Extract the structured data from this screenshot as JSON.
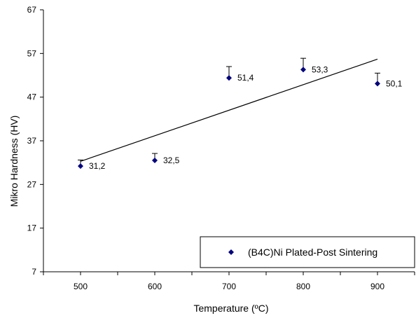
{
  "chart_data": {
    "type": "scatter",
    "xlabel": "Temperature  (ºC)",
    "ylabel": "Mikro Hardness (HV)",
    "xlim": [
      450,
      950
    ],
    "ylim": [
      7,
      67
    ],
    "x_ticks": [
      500,
      600,
      700,
      800,
      900
    ],
    "y_ticks": [
      7,
      17,
      27,
      37,
      47,
      57,
      67
    ],
    "x_tick_labels": [
      "500",
      "600",
      "700",
      "800",
      "900"
    ],
    "y_tick_labels": [
      "7",
      "17",
      "27",
      "37",
      "47",
      "57",
      "67"
    ],
    "series": [
      {
        "name": "(B4C)Ni Plated-Post Sintering",
        "marker": "diamond",
        "color": "#000080",
        "x": [
          500,
          600,
          700,
          800,
          900
        ],
        "y": [
          31.2,
          32.5,
          51.4,
          53.3,
          50.1
        ],
        "data_labels": [
          "31,2",
          "32,5",
          "51,4",
          "53,3",
          "50,1"
        ],
        "error_plus": [
          1.4,
          1.6,
          2.6,
          2.6,
          2.4
        ]
      }
    ],
    "trendline": {
      "type": "linear",
      "x": [
        500,
        900
      ],
      "y": [
        32.3,
        55.7
      ],
      "color": "#000000"
    },
    "grid": false,
    "legend": {
      "position": "bottom-right",
      "entries": [
        "(B4C)Ni Plated-Post Sintering"
      ]
    }
  }
}
